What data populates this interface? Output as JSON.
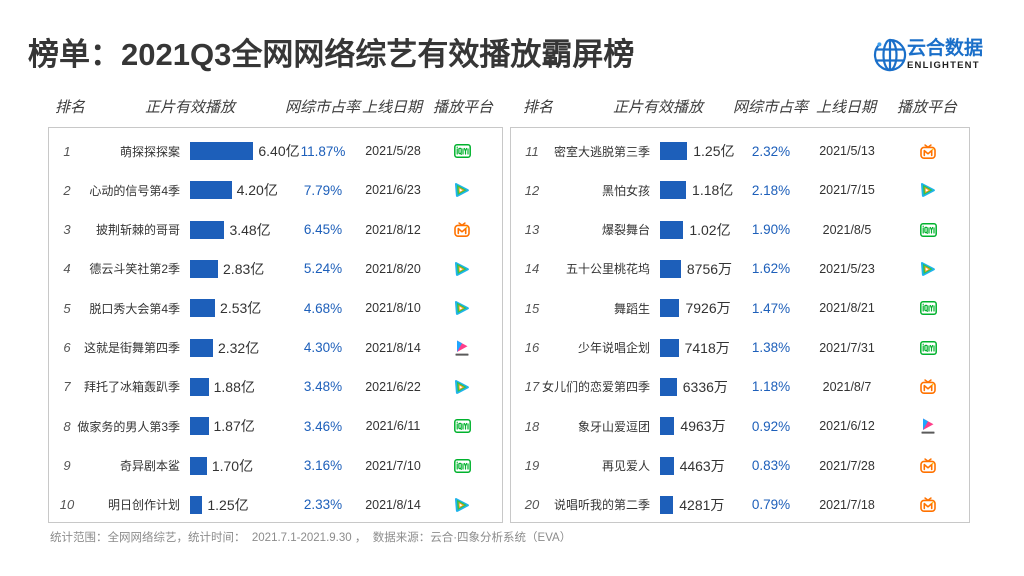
{
  "brand": {
    "name_cn": "云合数据",
    "name_en": "ENLIGHTENT"
  },
  "colors": {
    "bar": "#1d5fba",
    "share_text": "#1d5fba",
    "title_text": "#363636",
    "logo_blue": "#1a6fc9"
  },
  "chart_data": {
    "type": "bar",
    "title": "榜单：2021Q3全网网络综艺有效播放霸屏榜",
    "columns": {
      "rank": "排名",
      "plays": "正片有效播放",
      "share": "网综市占率",
      "date": "上线日期",
      "platform": "播放平台"
    },
    "rows": [
      {
        "rank": "1",
        "name": "萌探探探案",
        "plays": "6.40亿",
        "value": 6.4,
        "share": "11.87%",
        "date": "2021/5/28",
        "platform": "iqiyi-icon"
      },
      {
        "rank": "2",
        "name": "心动的信号第4季",
        "plays": "4.20亿",
        "value": 4.2,
        "share": "7.79%",
        "date": "2021/6/23",
        "platform": "tencent-video-icon"
      },
      {
        "rank": "3",
        "name": "披荆斩棘的哥哥",
        "plays": "3.48亿",
        "value": 3.48,
        "share": "6.45%",
        "date": "2021/8/12",
        "platform": "mango-tv-icon"
      },
      {
        "rank": "4",
        "name": "德云斗笑社第2季",
        "plays": "2.83亿",
        "value": 2.83,
        "share": "5.24%",
        "date": "2021/8/20",
        "platform": "tencent-video-icon"
      },
      {
        "rank": "5",
        "name": "脱口秀大会第4季",
        "plays": "2.53亿",
        "value": 2.53,
        "share": "4.68%",
        "date": "2021/8/10",
        "platform": "tencent-video-icon"
      },
      {
        "rank": "6",
        "name": "这就是街舞第四季",
        "plays": "2.32亿",
        "value": 2.32,
        "share": "4.30%",
        "date": "2021/8/14",
        "platform": "youku-icon"
      },
      {
        "rank": "7",
        "name": "拜托了冰箱轰趴季",
        "plays": "1.88亿",
        "value": 1.88,
        "share": "3.48%",
        "date": "2021/6/22",
        "platform": "tencent-video-icon"
      },
      {
        "rank": "8",
        "name": "做家务的男人第3季",
        "plays": "1.87亿",
        "value": 1.87,
        "share": "3.46%",
        "date": "2021/6/11",
        "platform": "iqiyi-icon"
      },
      {
        "rank": "9",
        "name": "奇异剧本鲨",
        "plays": "1.70亿",
        "value": 1.7,
        "share": "3.16%",
        "date": "2021/7/10",
        "platform": "iqiyi-icon"
      },
      {
        "rank": "10",
        "name": "明日创作计划",
        "plays": "1.25亿",
        "value": 1.25,
        "share": "2.33%",
        "date": "2021/8/14",
        "platform": "tencent-video-icon"
      },
      {
        "rank": "11",
        "name": "密室大逃脱第三季",
        "plays": "1.25亿",
        "value": 1.25,
        "share": "2.32%",
        "date": "2021/5/13",
        "platform": "mango-tv-icon"
      },
      {
        "rank": "12",
        "name": "黑怕女孩",
        "plays": "1.18亿",
        "value": 1.18,
        "share": "2.18%",
        "date": "2021/7/15",
        "platform": "tencent-video-icon"
      },
      {
        "rank": "13",
        "name": "爆裂舞台",
        "plays": "1.02亿",
        "value": 1.02,
        "share": "1.90%",
        "date": "2021/8/5",
        "platform": "iqiyi-icon"
      },
      {
        "rank": "14",
        "name": "五十公里桃花坞",
        "plays": "8756万",
        "value": 0.8756,
        "share": "1.62%",
        "date": "2021/5/23",
        "platform": "tencent-video-icon"
      },
      {
        "rank": "15",
        "name": "舞蹈生",
        "plays": "7926万",
        "value": 0.7926,
        "share": "1.47%",
        "date": "2021/8/21",
        "platform": "iqiyi-icon"
      },
      {
        "rank": "16",
        "name": "少年说唱企划",
        "plays": "7418万",
        "value": 0.7418,
        "share": "1.38%",
        "date": "2021/7/31",
        "platform": "iqiyi-icon"
      },
      {
        "rank": "17",
        "name": "女儿们的恋爱第四季",
        "plays": "6336万",
        "value": 0.6336,
        "share": "1.18%",
        "date": "2021/8/7",
        "platform": "mango-tv-icon"
      },
      {
        "rank": "18",
        "name": "象牙山爱逗团",
        "plays": "4963万",
        "value": 0.4963,
        "share": "0.92%",
        "date": "2021/6/12",
        "platform": "youku-icon"
      },
      {
        "rank": "19",
        "name": "再见爱人",
        "plays": "4463万",
        "value": 0.4463,
        "share": "0.83%",
        "date": "2021/7/28",
        "platform": "mango-tv-icon"
      },
      {
        "rank": "20",
        "name": "说唱听我的第二季",
        "plays": "4281万",
        "value": 0.4281,
        "share": "0.79%",
        "date": "2021/7/18",
        "platform": "mango-tv-icon"
      }
    ]
  },
  "footer": {
    "note": "统计范围：全网网络综艺，统计时间：  2021.7.1-2021.9.30 ，  数据来源：云合·四象分析系统（EVA）"
  }
}
